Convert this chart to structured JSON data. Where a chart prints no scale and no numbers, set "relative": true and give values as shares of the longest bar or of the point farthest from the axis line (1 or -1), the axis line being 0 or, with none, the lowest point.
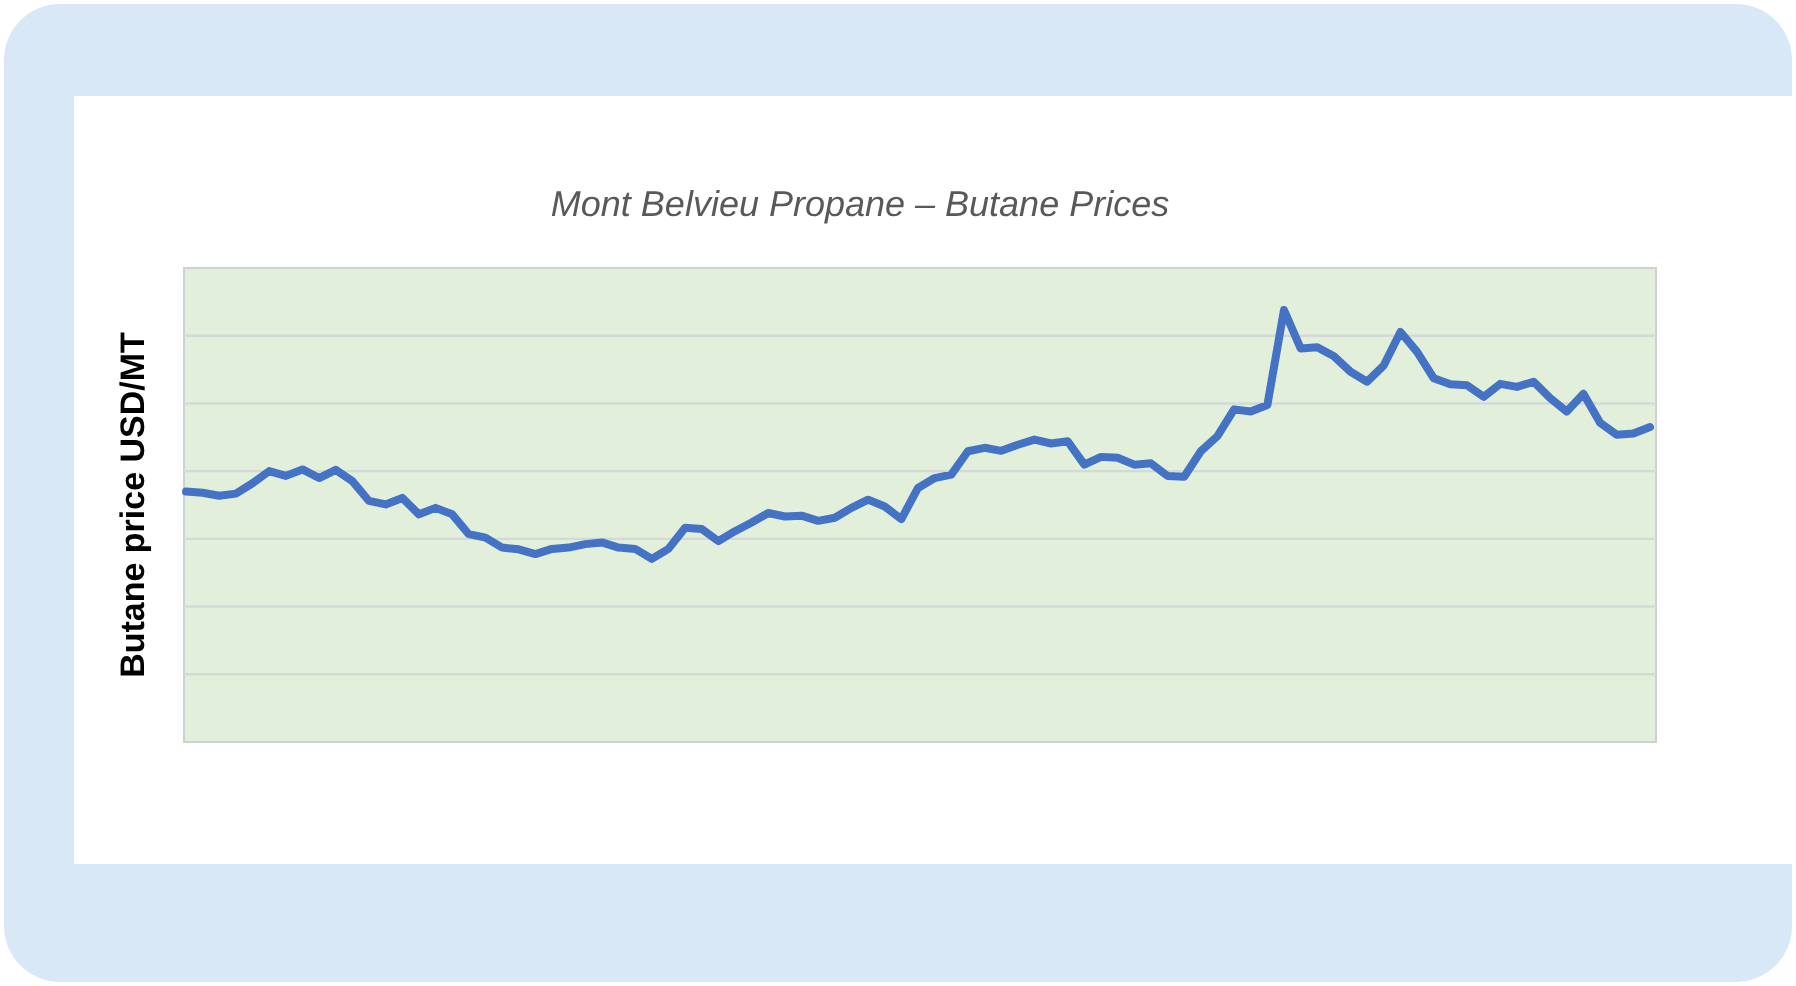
{
  "chart_data": {
    "type": "line",
    "title": "Mont Belvieu Propane – Butane Prices",
    "ylabel": "Butane price USD/MT",
    "relative": true,
    "grid": "y",
    "marker": "none",
    "line_style": "solid",
    "categories": [
      null,
      null,
      null,
      null,
      null,
      null,
      null,
      null,
      null,
      null,
      null,
      null,
      null,
      null,
      null,
      null,
      null,
      null,
      null,
      null,
      null,
      null,
      null,
      null,
      null,
      null,
      null,
      null,
      null,
      null,
      null,
      null,
      null,
      null,
      null,
      null,
      null,
      null,
      null,
      null,
      null,
      null,
      null,
      null,
      null,
      null,
      null,
      null,
      null,
      null,
      null,
      null,
      null,
      null,
      null,
      null,
      null,
      null,
      null,
      null,
      null,
      null,
      null,
      null,
      null,
      null,
      null,
      null,
      null,
      null,
      null,
      null,
      null,
      null,
      null,
      null,
      null,
      null,
      null,
      null,
      null,
      null,
      null,
      null,
      null,
      null,
      null,
      null,
      null
    ],
    "series": [
      {
        "color": "#4472c4",
        "values": [
          0.58,
          0.577,
          0.57,
          0.575,
          0.599,
          0.627,
          0.616,
          0.631,
          0.611,
          0.63,
          0.604,
          0.558,
          0.55,
          0.565,
          0.527,
          0.542,
          0.527,
          0.481,
          0.473,
          0.45,
          0.446,
          0.435,
          0.447,
          0.45,
          0.458,
          0.462,
          0.45,
          0.447,
          0.424,
          0.447,
          0.496,
          0.493,
          0.465,
          0.488,
          0.508,
          0.53,
          0.522,
          0.524,
          0.512,
          0.519,
          0.542,
          0.561,
          0.545,
          0.516,
          0.588,
          0.611,
          0.619,
          0.673,
          0.681,
          0.674,
          0.688,
          0.7,
          0.691,
          0.696,
          0.642,
          0.66,
          0.658,
          0.642,
          0.645,
          0.616,
          0.614,
          0.673,
          0.708,
          0.77,
          0.765,
          0.78,
          1,
          0.911,
          0.914,
          0.893,
          0.857,
          0.834,
          0.872,
          0.949,
          0.903,
          0.842,
          0.828,
          0.826,
          0.799,
          0.829,
          0.822,
          0.834,
          0.796,
          0.765,
          0.806,
          0.739,
          0.711,
          0.714,
          0.729
        ]
      }
    ]
  }
}
